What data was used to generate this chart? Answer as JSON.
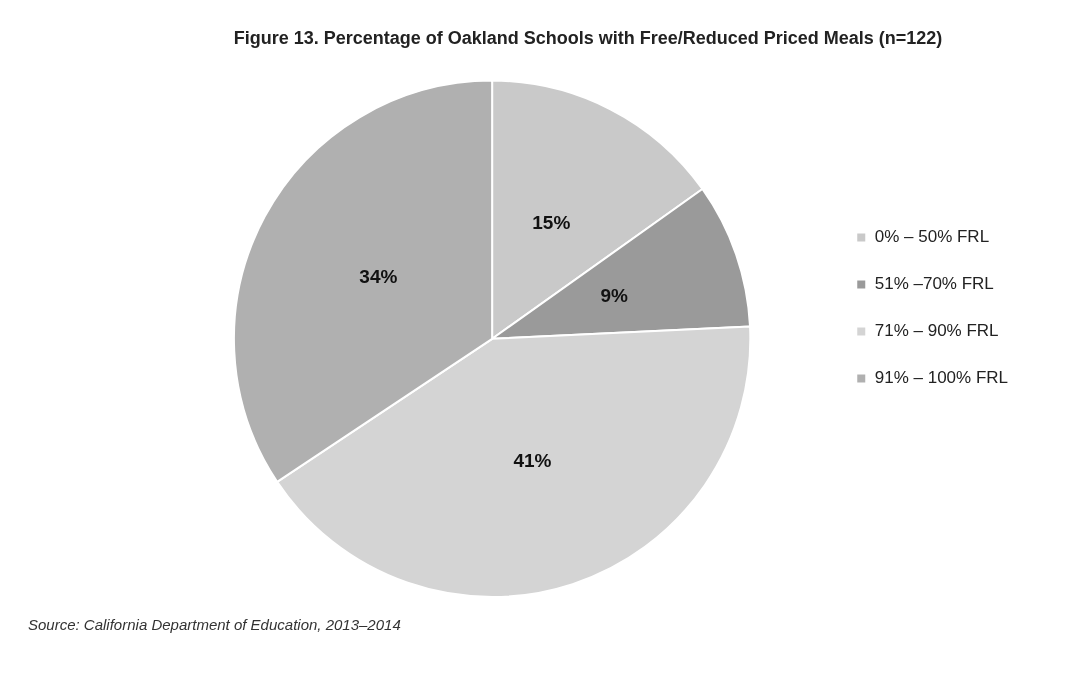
{
  "chart_data": {
    "type": "pie",
    "title": "Figure 13. Percentage of Oakland Schools with Free/Reduced Priced Meals (n=122)",
    "categories": [
      "0% – 50% FRL",
      "51% –70% FRL",
      "71% – 90% FRL",
      "91% – 100% FRL"
    ],
    "values": [
      15,
      9,
      41,
      34
    ],
    "colors": [
      "#c9c9c9",
      "#9a9a9a",
      "#d4d4d4",
      "#b0b0b0"
    ],
    "value_labels": [
      "15%",
      "9%",
      "41%",
      "34%"
    ],
    "legend": "right",
    "annotations": [
      "Source: California Department of Education, 2013–2014"
    ]
  }
}
